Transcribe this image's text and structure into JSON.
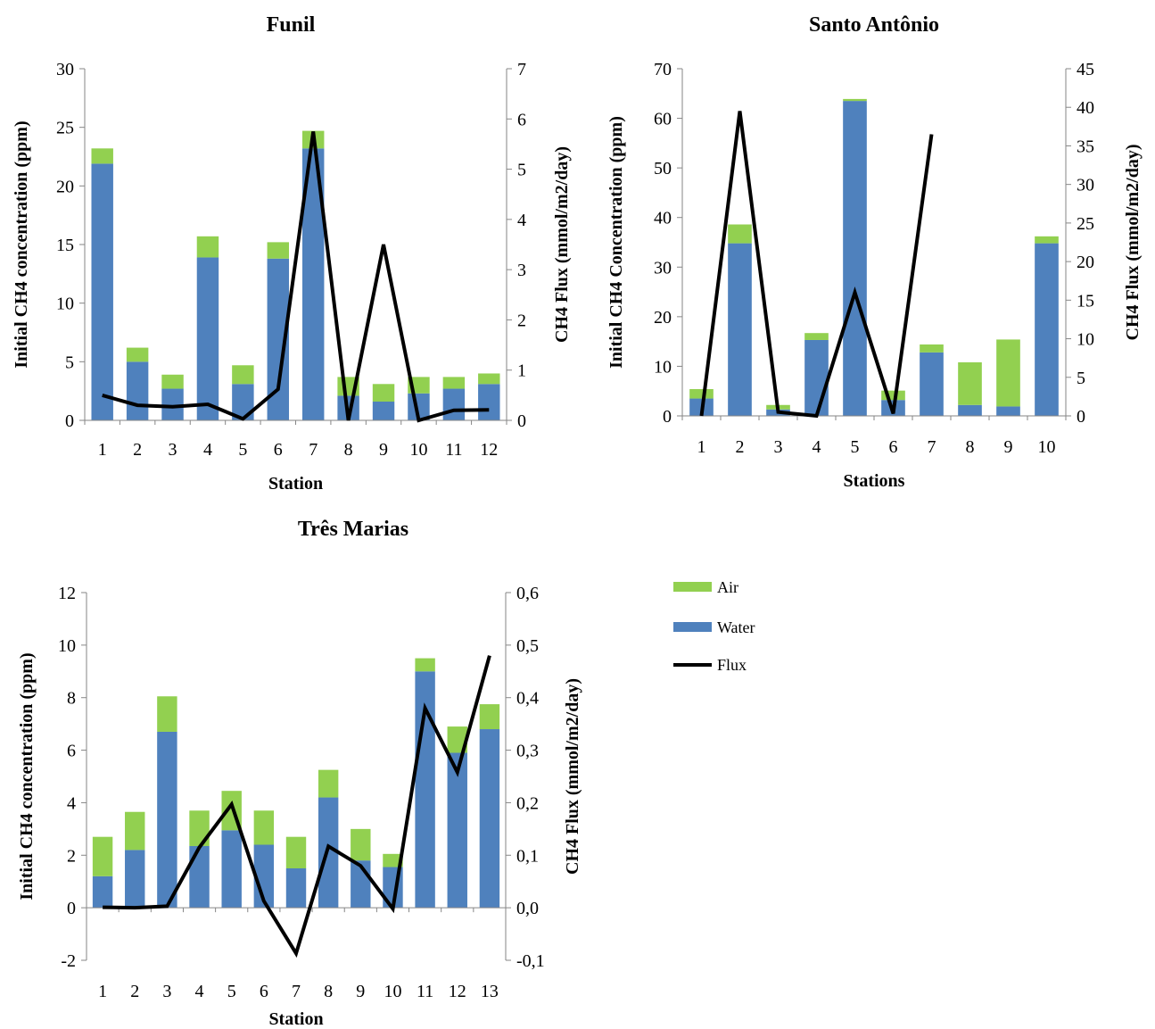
{
  "colors": {
    "air": "#92d050",
    "water": "#4f81bd",
    "flux": "#000000",
    "axis": "#868686"
  },
  "legend": [
    {
      "key": "air",
      "label": "Air",
      "icon": "green-bar-swatch"
    },
    {
      "key": "water",
      "label": "Water",
      "icon": "blue-bar-swatch"
    },
    {
      "key": "flux",
      "label": "Flux",
      "icon": "black-line-swatch"
    }
  ],
  "chart_data": [
    {
      "id": "funil",
      "type": "bar",
      "title": "Funil",
      "xlabel": "Station",
      "ylabel": "Initial CH4 concentration (ppm)",
      "y2label": "CH4 Flux (mmol/m2/day)",
      "categories": [
        "1",
        "2",
        "3",
        "4",
        "5",
        "6",
        "7",
        "8",
        "9",
        "10",
        "11",
        "12"
      ],
      "ylim": [
        0,
        30
      ],
      "yticks": [
        "0",
        "5",
        "10",
        "15",
        "20",
        "25",
        "30"
      ],
      "y2lim": [
        0,
        7
      ],
      "y2ticks": [
        "0",
        "1",
        "2",
        "3",
        "4",
        "5",
        "6",
        "7"
      ],
      "grid": false,
      "series": [
        {
          "name": "Water",
          "values": [
            21.9,
            5.0,
            2.7,
            13.9,
            3.1,
            13.8,
            23.2,
            2.1,
            1.6,
            2.3,
            2.7,
            3.1
          ]
        },
        {
          "name": "Air",
          "values": [
            1.3,
            1.2,
            1.2,
            1.8,
            1.6,
            1.4,
            1.5,
            1.6,
            1.5,
            1.4,
            1.0,
            0.9
          ]
        },
        {
          "name": "Flux",
          "axis": "secondary",
          "values": [
            0.5,
            0.3,
            0.27,
            0.32,
            0.03,
            0.62,
            5.75,
            0.0,
            3.5,
            0.0,
            0.2,
            0.21
          ]
        }
      ]
    },
    {
      "id": "santo-antonio",
      "type": "bar",
      "title": "Santo Antônio",
      "xlabel": "Stations",
      "ylabel": "Initial CH4 Concentration (ppm)",
      "y2label": "CH4 Flux (mmol/m2/day)",
      "categories": [
        "1",
        "2",
        "3",
        "4",
        "5",
        "6",
        "7",
        "8",
        "9",
        "10"
      ],
      "ylim": [
        0,
        70
      ],
      "yticks": [
        "0",
        "10",
        "20",
        "30",
        "40",
        "50",
        "60",
        "70"
      ],
      "y2lim": [
        0,
        45
      ],
      "y2ticks": [
        "0",
        "5",
        "10",
        "15",
        "20",
        "25",
        "30",
        "35",
        "40",
        "45"
      ],
      "grid": false,
      "series": [
        {
          "name": "Water",
          "values": [
            3.5,
            34.8,
            1.3,
            15.3,
            63.5,
            3.2,
            12.8,
            2.2,
            1.9,
            34.8
          ]
        },
        {
          "name": "Air",
          "values": [
            1.9,
            3.8,
            0.9,
            1.4,
            0.4,
            1.9,
            1.6,
            8.6,
            13.5,
            1.4
          ]
        },
        {
          "name": "Flux",
          "axis": "secondary",
          "values": [
            0.0,
            39.5,
            0.5,
            0.0,
            16.0,
            0.3,
            36.5,
            null,
            null,
            null
          ]
        }
      ]
    },
    {
      "id": "tres-marias",
      "type": "bar",
      "title": "Três Marias",
      "xlabel": "Station",
      "ylabel": "Initial CH4 concentration (ppm)",
      "y2label": "CH4 Flux (mmol/m2/day)",
      "categories": [
        "1",
        "2",
        "3",
        "4",
        "5",
        "6",
        "7",
        "8",
        "9",
        "10",
        "11",
        "12",
        "13"
      ],
      "ylim": [
        -2,
        12
      ],
      "yticks": [
        "-2",
        "0",
        "2",
        "4",
        "6",
        "8",
        "10",
        "12"
      ],
      "y2lim": [
        -0.1,
        0.6
      ],
      "y2ticks": [
        "-0,1",
        "0,0",
        "0,1",
        "0,2",
        "0,3",
        "0,4",
        "0,5",
        "0,6"
      ],
      "grid": false,
      "series": [
        {
          "name": "Water",
          "values": [
            1.2,
            2.2,
            6.7,
            2.35,
            2.95,
            2.4,
            1.5,
            4.2,
            1.8,
            1.55,
            9.0,
            5.9,
            6.8
          ]
        },
        {
          "name": "Air",
          "values": [
            1.5,
            1.45,
            1.35,
            1.35,
            1.5,
            1.3,
            1.2,
            1.05,
            1.2,
            0.5,
            0.5,
            1.0,
            0.95
          ]
        },
        {
          "name": "Flux",
          "axis": "secondary",
          "values": [
            0.001,
            0.0,
            0.003,
            0.115,
            0.197,
            0.013,
            -0.087,
            0.117,
            0.08,
            -0.002,
            0.38,
            0.258,
            0.48
          ]
        }
      ]
    }
  ]
}
